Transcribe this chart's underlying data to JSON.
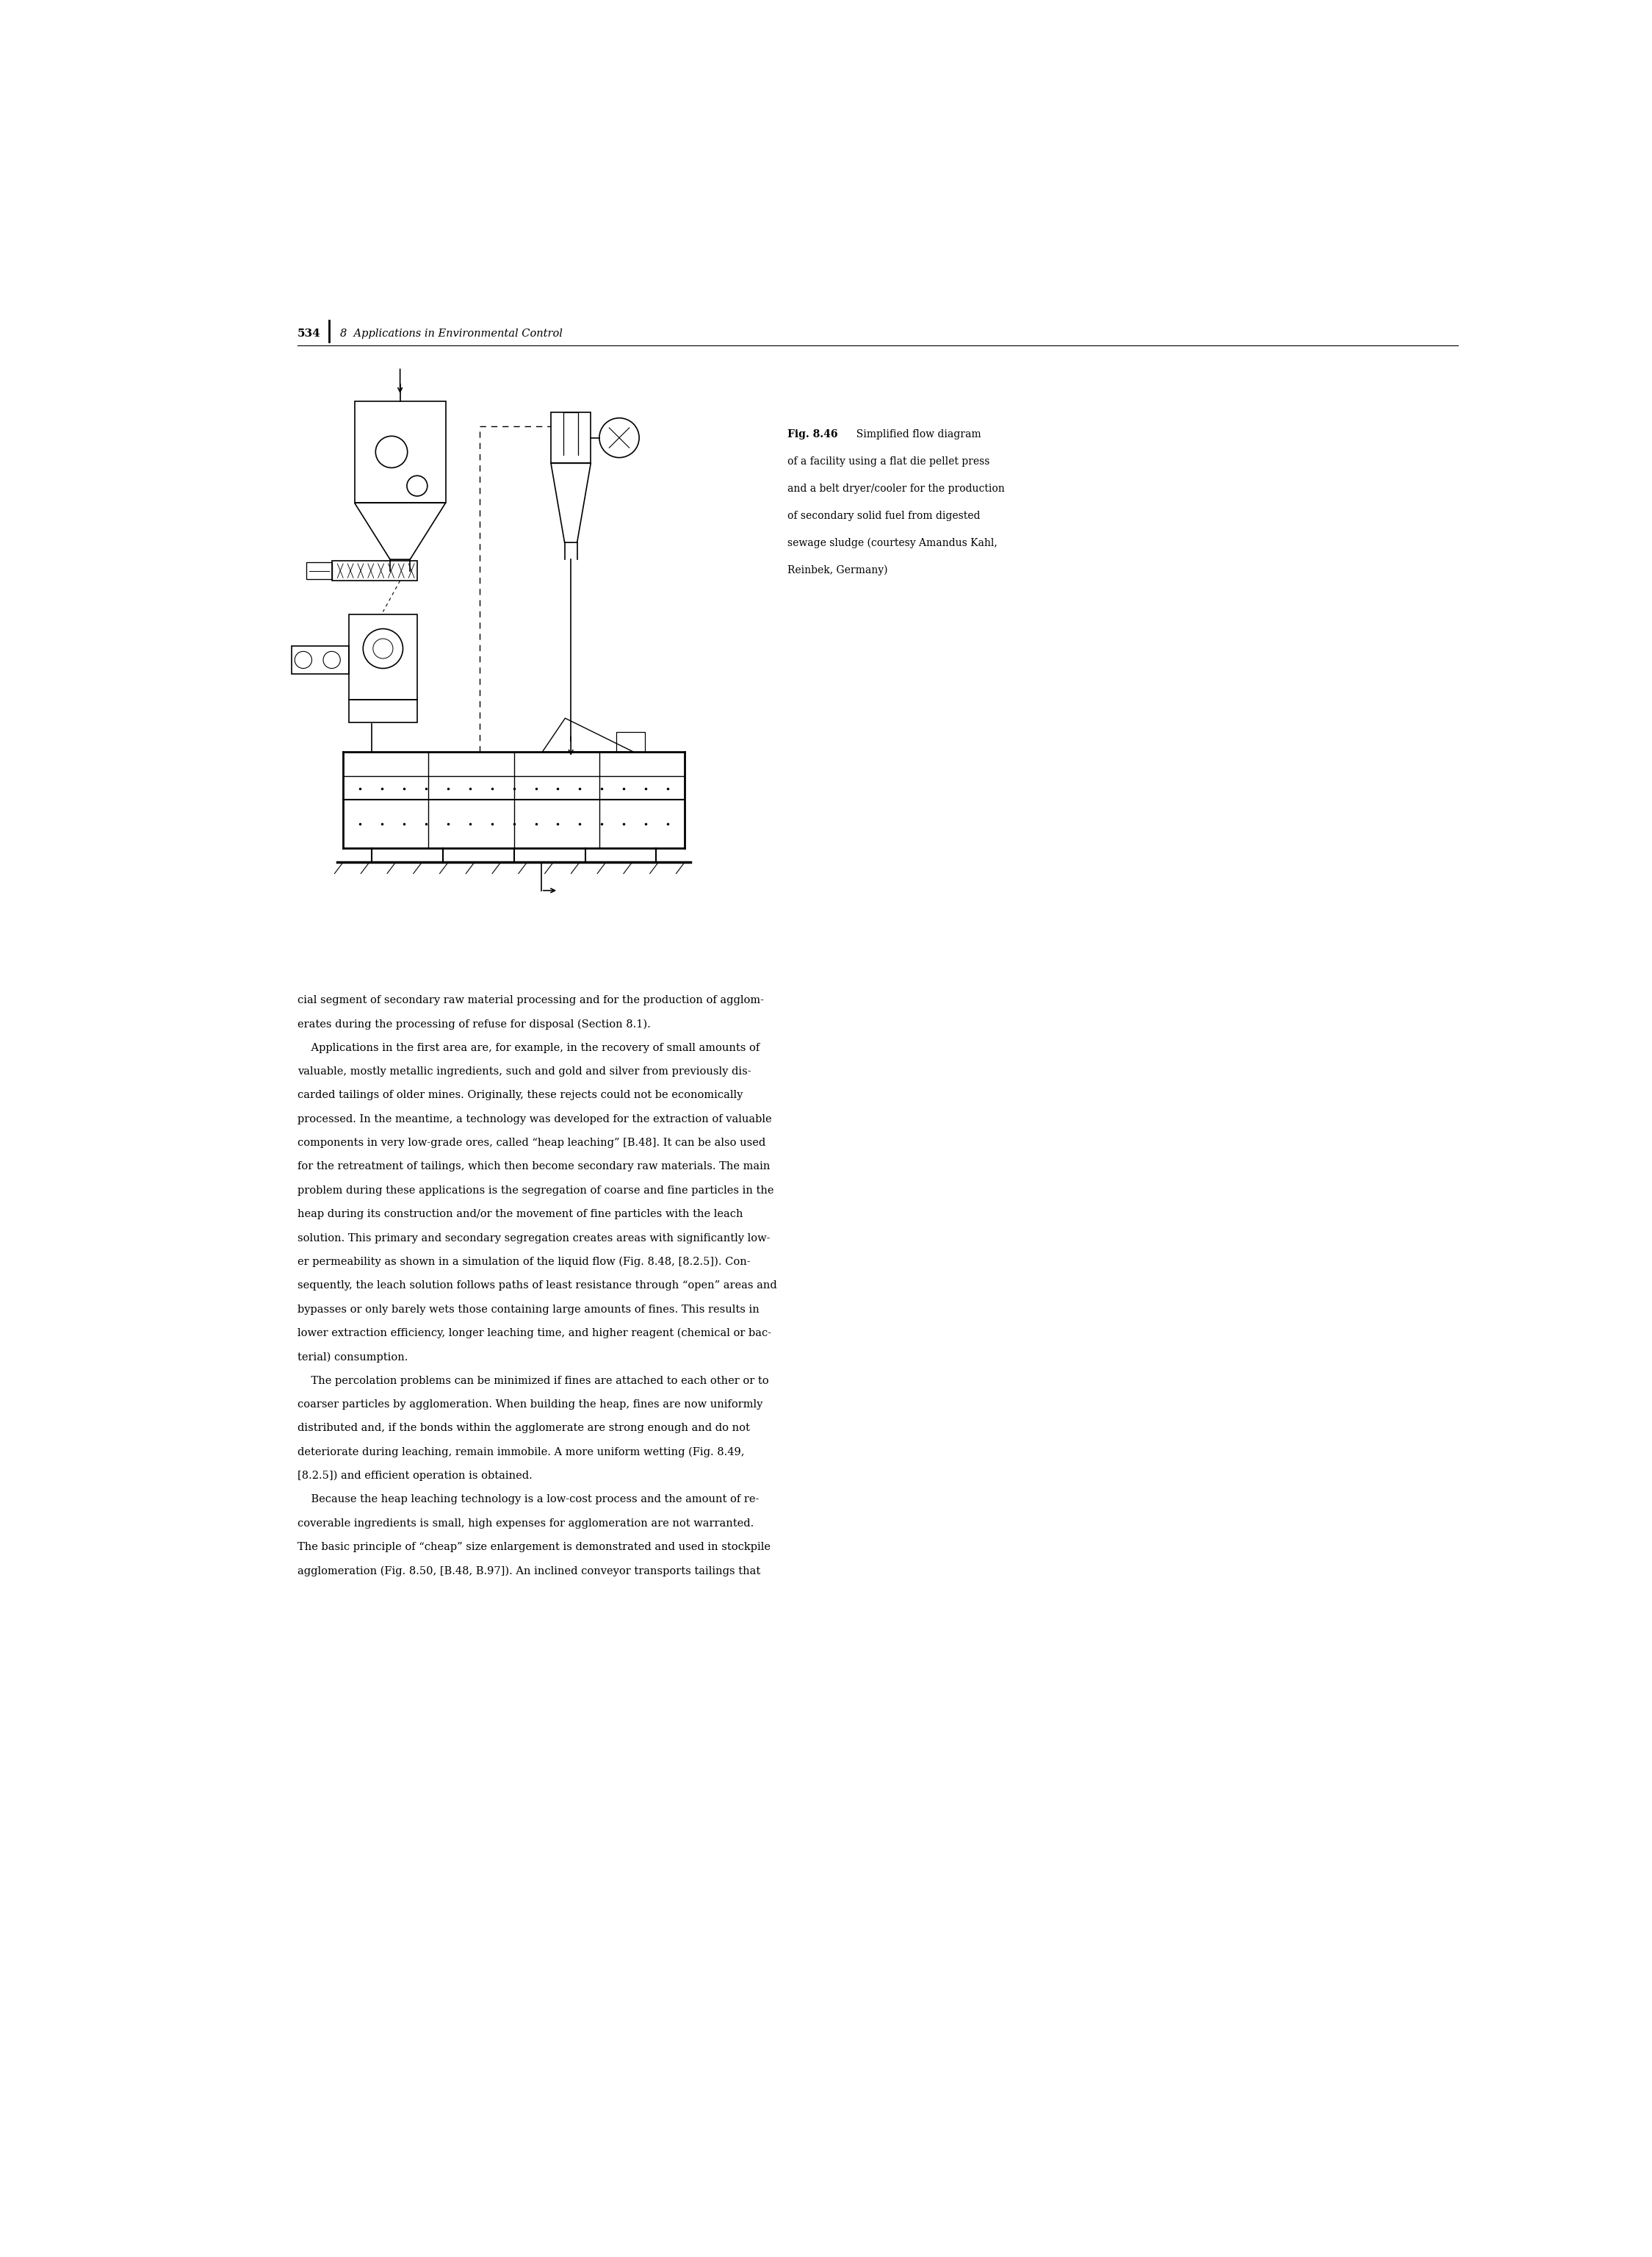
{
  "page_number": "534",
  "chapter_header": "8  Applications in Environmental Control",
  "fig_label": "Fig. 8.46",
  "fig_caption_lines": [
    "Simplified flow diagram",
    "of a facility using a flat die pellet press",
    "and a belt dryer/cooler for the production",
    "of secondary solid fuel from digested",
    "sewage sludge (courtesy Amandus Kahl,",
    "Reinbek, Germany)"
  ],
  "body_text": [
    "cial segment of secondary raw material processing and for the production of agglom-",
    "erates during the processing of refuse for disposal (Section 8.1).",
    "    Applications in the first area are, for example, in the recovery of small amounts of",
    "valuable, mostly metallic ingredients, such and gold and silver from previously dis-",
    "carded tailings of older mines. Originally, these rejects could not be economically",
    "processed. In the meantime, a technology was developed for the extraction of valuable",
    "components in very low-grade ores, called “heap leaching” [B.48]. It can be also used",
    "for the retreatment of tailings, which then become secondary raw materials. The main",
    "problem during these applications is the segregation of coarse and fine particles in the",
    "heap during its construction and/or the movement of fine particles with the leach",
    "solution. This primary and secondary segregation creates areas with significantly low-",
    "er permeability as shown in a simulation of the liquid flow (Fig. 8.48, [8.2.5]). Con-",
    "sequently, the leach solution follows paths of least resistance through “open” areas and",
    "bypasses or only barely wets those containing large amounts of fines. This results in",
    "lower extraction efficiency, longer leaching time, and higher reagent (chemical or bac-",
    "terial) consumption.",
    "    The percolation problems can be minimized if fines are attached to each other or to",
    "coarser particles by agglomeration. When building the heap, fines are now uniformly",
    "distributed and, if the bonds within the agglomerate are strong enough and do not",
    "deteriorate during leaching, remain immobile. A more uniform wetting (Fig. 8.49,",
    "[8.2.5]) and efficient operation is obtained.",
    "    Because the heap leaching technology is a low-cost process and the amount of re-",
    "coverable ingredients is small, high expenses for agglomeration are not warranted.",
    "The basic principle of “cheap” size enlargement is demonstrated and used in stockpile",
    "agglomeration (Fig. 8.50, [B.48, B.97]). An inclined conveyor transports tailings that"
  ],
  "background_color": "#ffffff",
  "text_color": "#000000",
  "body_fontsize": 10.5,
  "caption_fontsize": 10.0,
  "header_fontsize": 10.5,
  "page_num_fontsize": 11.0
}
